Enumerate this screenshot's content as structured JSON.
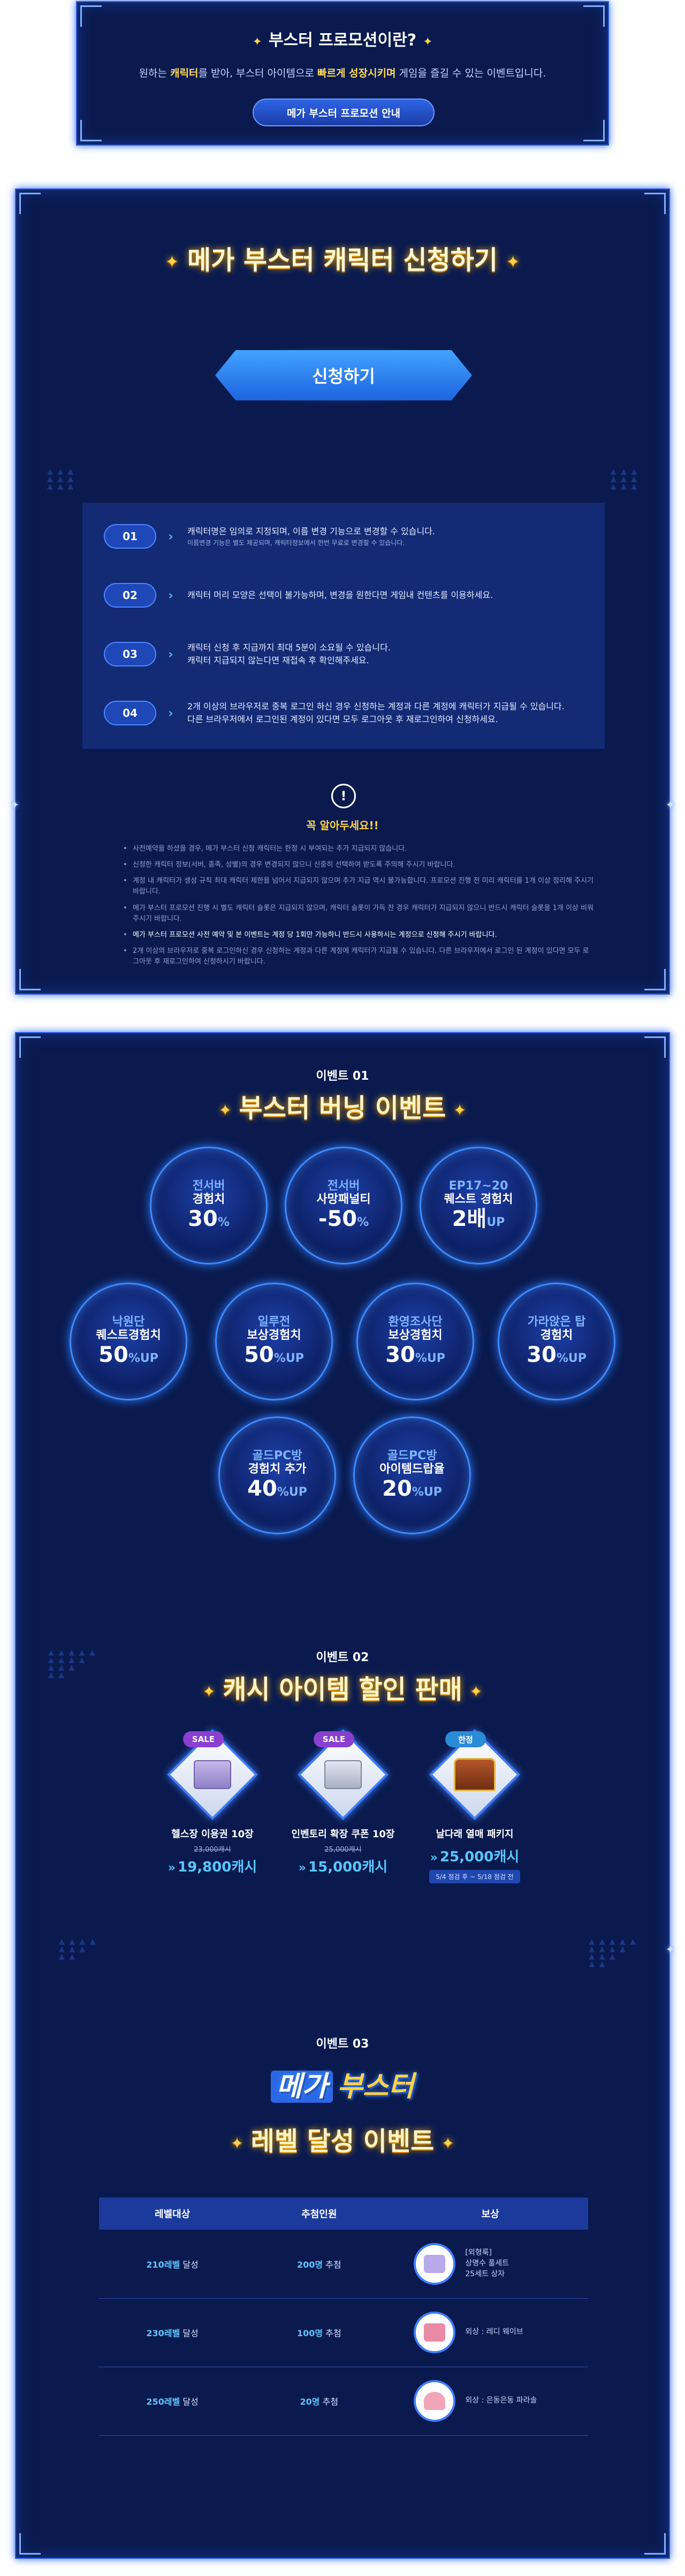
{
  "intro": {
    "title": "부스터 프로모션이란?",
    "description_before": "원하는 ",
    "description_hl1": "캐릭터",
    "description_mid1": "를 받아, 부스터 아이템으로 ",
    "description_hl2": "빠르게 성장시키며",
    "description_after": " 게임을 즐길 수 있는 이벤트입니다.",
    "button_label": "메가 부스터 프로모션 안내"
  },
  "apply": {
    "title": "메가 부스터 캐릭터 신청하기",
    "button_label": "신청하기",
    "steps": [
      {
        "num": "01",
        "text": "캐릭터명은 임의로 지정되며, 이름 변경 기능으로 변경할 수 있습니다.",
        "sub": "이름변경 기능은 별도 제공되며, 캐릭터정보에서 한번 무료로 변경할 수 있습니다."
      },
      {
        "num": "02",
        "text": "캐릭터 머리 모양은 선택이 불가능하며, 변경을 원한다면 게임내 컨텐츠를 이용하세요.",
        "sub": ""
      },
      {
        "num": "03",
        "text": "캐릭터 신청 후 지급까지 최대 5분이 소요될 수 있습니다.",
        "sub": "캐릭터 지급되지 않는다면 재접속 후 확인해주세요."
      },
      {
        "num": "04",
        "text": "2개 이상의 브라우저로 중복 로그인 하신 경우 신청하는 계정과 다른 계정에 캐릭터가 지급될 수 있습니다.",
        "sub": "다른 브라우저에서 로그인된 계정이 있다면 모두 로그아웃 후 재로그인하여 신청하세요."
      }
    ],
    "notice_icon": "!",
    "notice_title": "꼭 알아두세요!!",
    "notices": [
      "사전예약을 하셨을 경우, 메가 부스터 신청 캐릭터는 한정 시 부여되는 추가 지급되지 않습니다.",
      "신청한 캐릭터 정보(서버, 종족, 성별)의 경우 변경되지 않으니 신중히 선택하여 받도록 주의해 주시기 바랍니다.",
      "계정 내 캐릭터가 생성 규칙 최대 캐릭터 제한을 넘어서 지급되지 않으며 추가 지급 역시 불가능합니다. 프로모션 진행 전 미리 캐릭터를 1개 이상 정리해 주시기 바랍니다.",
      "메가 부스터 프로모션 진행 시 별도 캐릭터 슬롯은 지급되지 않으며, 캐릭터 슬롯이 가득 찬 경우 캐릭터가 지급되지 않으니 반드시 캐릭터 슬롯을 1개 이상 비워 주시기 바랍니다.",
      "메가 부스터 프로모션 사전 예약 및 본 이벤트는 계정 당 1회만 가능하니 반드시 사용하시는 계정으로 신청해 주시기 바랍니다.",
      "2개 이상의 브라우저로 중복 로그인하신 경우 신청하는 계정과 다른 계정에 캐릭터가 지급될 수 있습니다. 다른 브라우저에서 로그인 된 계정이 있다면 모두 로그아웃 후 재로그인하여 신청하시기 바랍니다."
    ]
  },
  "event1": {
    "label": "이벤트 01",
    "title": "부스터 버닝 이벤트",
    "circles": [
      {
        "l1": "전서버",
        "l2": "경험치",
        "val": "30",
        "unit": "%"
      },
      {
        "l1": "전서버",
        "l2": "사망패널티",
        "val": "-50",
        "unit": "%"
      },
      {
        "l1": "EP17~20",
        "l2": "퀘스트 경험치",
        "val": "2배",
        "unit": "UP"
      },
      {
        "l1": "낙원단",
        "l2": "퀘스트경험치",
        "val": "50",
        "unit": "%UP"
      },
      {
        "l1": "일루전",
        "l2": "보상경험치",
        "val": "50",
        "unit": "%UP"
      },
      {
        "l1": "환영조사단",
        "l2": "보상경험치",
        "val": "30",
        "unit": "%UP"
      },
      {
        "l1": "가라앉은 탑",
        "l2": "경험치",
        "val": "30",
        "unit": "%UP"
      },
      {
        "l1": "골드PC방",
        "l2": "경험치 추가",
        "val": "40",
        "unit": "%UP"
      },
      {
        "l1": "골드PC방",
        "l2": "아이템드랍율",
        "val": "20",
        "unit": "%UP"
      }
    ]
  },
  "event2": {
    "label": "이벤트 02",
    "title": "캐시 아이템 할인 판매",
    "items": [
      {
        "badge": "SALE",
        "name": "헬스장 이용권 10장",
        "was": "23,000캐시",
        "price": "19,800캐시",
        "period": ""
      },
      {
        "badge": "SALE",
        "name": "인벤토리 확장 쿠폰 10장",
        "was": "25,000캐시",
        "price": "15,000캐시",
        "period": ""
      },
      {
        "badge": "한정",
        "name": "날다래 열매 패키지",
        "was": "",
        "price": "25,000캐시",
        "period": "5/4 점검 후 ~ 5/18 점검 전"
      }
    ]
  },
  "event3": {
    "label": "이벤트 03",
    "logo_mega": "메가",
    "logo_booster": "부스터",
    "title": "레벨 달성 이벤트",
    "headers": [
      "레벨대상",
      "추첨인원",
      "보상"
    ],
    "rows": [
      {
        "level": "210레벨",
        "level_suffix": " 달성",
        "count": "200명",
        "count_suffix": " 추첨",
        "reward_line1": "[외형룩]",
        "reward_line2": "상명수 풀세트",
        "reward_line3": "25세트 상자",
        "thumb_color": "#b9a8ea"
      },
      {
        "level": "230레벨",
        "level_suffix": " 달성",
        "count": "100명",
        "count_suffix": " 추첨",
        "reward_line1": "외상 : 레디 웨이브",
        "reward_line2": "",
        "reward_line3": "",
        "thumb_color": "#e98aa6"
      },
      {
        "level": "250레벨",
        "level_suffix": " 달성",
        "count": "20명",
        "count_suffix": " 추첨",
        "reward_line1": "외상 : 은동은동 파라솔",
        "reward_line2": "",
        "reward_line3": "",
        "thumb_color": "#f0a6b8"
      }
    ]
  },
  "colors": {
    "panel_bg": "#0a1a4e",
    "accent_blue": "#3e7dff",
    "gold": "#ffd24a",
    "price_blue": "#58c6ff"
  }
}
